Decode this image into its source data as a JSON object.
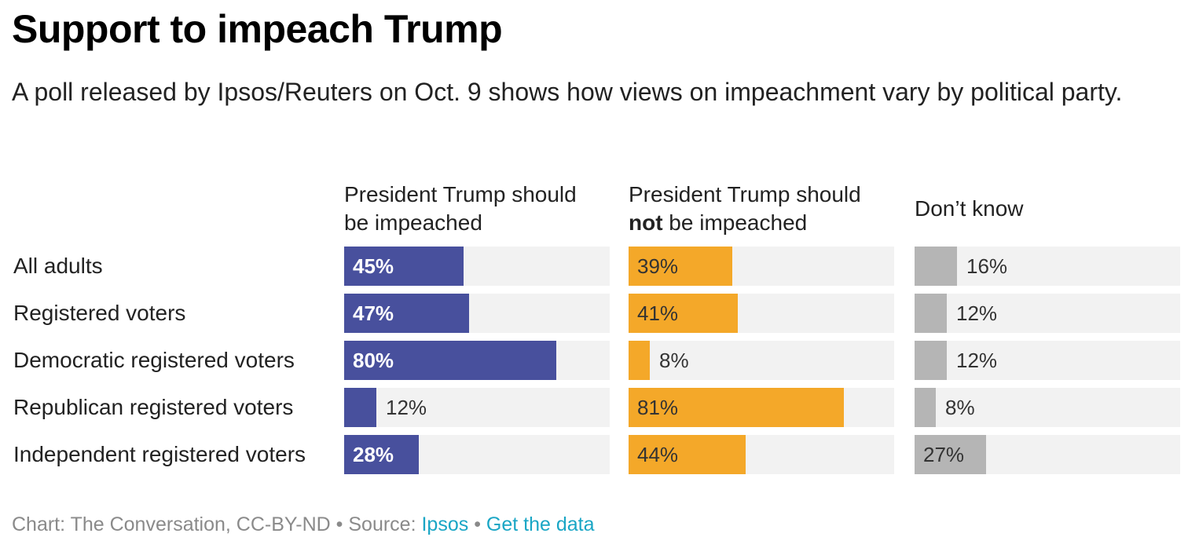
{
  "title": "Support to impeach Trump",
  "subtitle": "A poll released by Ipsos/Reuters on Oct. 9 shows how views on impeachment vary by political party.",
  "columns": [
    {
      "line1": "President Trump should",
      "line2_bold": "",
      "line2": "be impeached"
    },
    {
      "line1": "President Trump should",
      "line2_bold": "not",
      "line2": " be impeached"
    },
    {
      "line1": "",
      "line2_bold": "",
      "line2": "Don’t know"
    }
  ],
  "footer": {
    "credit": "Chart: The Conversation, CC-BY-ND",
    "sep1": " • ",
    "source_prefix": "Source: ",
    "source_link": "Ipsos",
    "sep2": " • ",
    "data_link": "Get the data"
  },
  "chart_data": {
    "type": "bar",
    "orientation": "horizontal",
    "categories": [
      "All adults",
      "Registered voters",
      "Democratic registered voters",
      "Republican registered voters",
      "Independent registered voters"
    ],
    "series": [
      {
        "name": "President Trump should be impeached",
        "values": [
          45,
          47,
          80,
          12,
          28
        ],
        "labels": [
          "45%",
          "47%",
          "80%",
          "12%",
          "28%"
        ],
        "color": "#48509d"
      },
      {
        "name": "President Trump should not be impeached",
        "values": [
          39,
          41,
          8,
          81,
          44
        ],
        "labels": [
          "39%",
          "41%",
          "8%",
          "81%",
          "44%"
        ],
        "color": "#f4a829"
      },
      {
        "name": "Don’t know",
        "values": [
          16,
          12,
          12,
          8,
          27
        ],
        "labels": [
          "16%",
          "12%",
          "12%",
          "8%",
          "27%"
        ],
        "color": "#b5b5b5"
      }
    ],
    "xlim": [
      0,
      100
    ],
    "track_color": "#f2f2f2",
    "legend": "column headers"
  }
}
